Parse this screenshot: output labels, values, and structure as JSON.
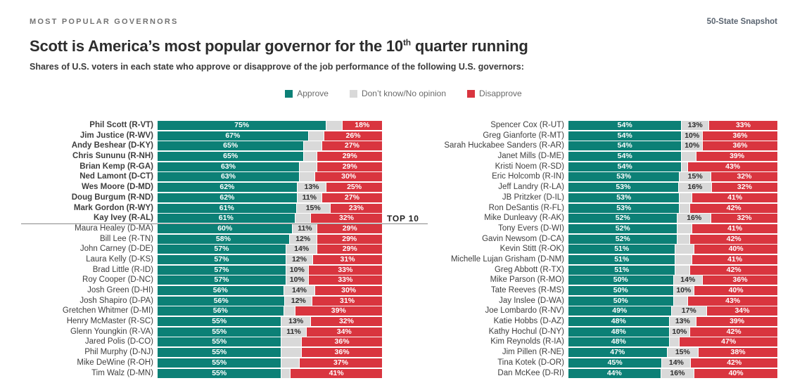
{
  "header": {
    "eyebrow": "MOST POPULAR GOVERNORS",
    "snapshot": "50-State Snapshot",
    "title_prefix": "Scott is America’s most popular governor for the 10",
    "title_sup": "th",
    "title_suffix": " quarter running",
    "subtitle": "Shares of U.S. voters in each state who approve or disapprove of the job performance of the following U.S. governors:"
  },
  "annotations": {
    "top10": "TOP 10"
  },
  "colors": {
    "approve": "#0c8076",
    "neutral": "#d9d9d9",
    "disapprove": "#d9353f"
  },
  "legend": [
    {
      "name": "approve",
      "label": "Approve",
      "color": "#0c8076"
    },
    {
      "name": "neutral",
      "label": "Don’t know/No opinion",
      "color": "#d9d9d9"
    },
    {
      "name": "disapprove",
      "label": "Disapprove",
      "color": "#d9353f"
    }
  ],
  "chart_data": {
    "type": "bar",
    "orientation": "horizontal",
    "stacked": true,
    "unit": "%",
    "series_names": [
      "Approve",
      "Don't know/No opinion",
      "Disapprove"
    ],
    "note": "neutral is null when the segment label is not shown in the chart; segment width is then 100 - approve - disapprove",
    "columns": [
      [
        {
          "name": "Phil Scott (R-VT)",
          "approve": 75,
          "neutral": null,
          "disapprove": 18,
          "bold": true
        },
        {
          "name": "Jim Justice (R-WV)",
          "approve": 67,
          "neutral": null,
          "disapprove": 26,
          "bold": true
        },
        {
          "name": "Andy Beshear (D-KY)",
          "approve": 65,
          "neutral": null,
          "disapprove": 27,
          "bold": true
        },
        {
          "name": "Chris Sununu (R-NH)",
          "approve": 65,
          "neutral": null,
          "disapprove": 29,
          "bold": true
        },
        {
          "name": "Brian Kemp (R-GA)",
          "approve": 63,
          "neutral": null,
          "disapprove": 29,
          "bold": true
        },
        {
          "name": "Ned Lamont (D-CT)",
          "approve": 63,
          "neutral": null,
          "disapprove": 30,
          "bold": true
        },
        {
          "name": "Wes Moore (D-MD)",
          "approve": 62,
          "neutral": 13,
          "disapprove": 25,
          "bold": true
        },
        {
          "name": "Doug Burgum (R-ND)",
          "approve": 62,
          "neutral": 11,
          "disapprove": 27,
          "bold": true
        },
        {
          "name": "Mark Gordon (R-WY)",
          "approve": 61,
          "neutral": 15,
          "disapprove": 23,
          "bold": true
        },
        {
          "name": "Kay Ivey (R-AL)",
          "approve": 61,
          "neutral": null,
          "disapprove": 32,
          "bold": true
        },
        {
          "name": "Maura Healey (D-MA)",
          "approve": 60,
          "neutral": 11,
          "disapprove": 29,
          "bold": false
        },
        {
          "name": "Bill Lee (R-TN)",
          "approve": 58,
          "neutral": 12,
          "disapprove": 29,
          "bold": false
        },
        {
          "name": "John Carney (D-DE)",
          "approve": 57,
          "neutral": 14,
          "disapprove": 29,
          "bold": false
        },
        {
          "name": "Laura Kelly (D-KS)",
          "approve": 57,
          "neutral": 12,
          "disapprove": 31,
          "bold": false
        },
        {
          "name": "Brad Little (R-ID)",
          "approve": 57,
          "neutral": 10,
          "disapprove": 33,
          "bold": false
        },
        {
          "name": "Roy Cooper (D-NC)",
          "approve": 57,
          "neutral": 10,
          "disapprove": 33,
          "bold": false
        },
        {
          "name": "Josh Green (D-HI)",
          "approve": 56,
          "neutral": 14,
          "disapprove": 30,
          "bold": false
        },
        {
          "name": "Josh Shapiro (D-PA)",
          "approve": 56,
          "neutral": 12,
          "disapprove": 31,
          "bold": false
        },
        {
          "name": "Gretchen Whitmer (D-MI)",
          "approve": 56,
          "neutral": null,
          "disapprove": 39,
          "bold": false
        },
        {
          "name": "Henry McMaster (R-SC)",
          "approve": 55,
          "neutral": 13,
          "disapprove": 32,
          "bold": false
        },
        {
          "name": "Glenn Youngkin (R-VA)",
          "approve": 55,
          "neutral": 11,
          "disapprove": 34,
          "bold": false
        },
        {
          "name": "Jared Polis (D-CO)",
          "approve": 55,
          "neutral": null,
          "disapprove": 36,
          "bold": false
        },
        {
          "name": "Phil Murphy (D-NJ)",
          "approve": 55,
          "neutral": null,
          "disapprove": 36,
          "bold": false
        },
        {
          "name": "Mike DeWine (R-OH)",
          "approve": 55,
          "neutral": null,
          "disapprove": 37,
          "bold": false
        },
        {
          "name": "Tim Walz (D-MN)",
          "approve": 55,
          "neutral": null,
          "disapprove": 41,
          "bold": false
        }
      ],
      [
        {
          "name": "Spencer Cox (R-UT)",
          "approve": 54,
          "neutral": 13,
          "disapprove": 33,
          "bold": false
        },
        {
          "name": "Greg Gianforte (R-MT)",
          "approve": 54,
          "neutral": 10,
          "disapprove": 36,
          "bold": false
        },
        {
          "name": "Sarah Huckabee Sanders (R-AR)",
          "approve": 54,
          "neutral": 10,
          "disapprove": 36,
          "bold": false
        },
        {
          "name": "Janet Mills (D-ME)",
          "approve": 54,
          "neutral": null,
          "disapprove": 39,
          "bold": false
        },
        {
          "name": "Kristi Noem (R-SD)",
          "approve": 54,
          "neutral": null,
          "disapprove": 43,
          "bold": false
        },
        {
          "name": "Eric Holcomb (R-IN)",
          "approve": 53,
          "neutral": 15,
          "disapprove": 32,
          "bold": false
        },
        {
          "name": "Jeff Landry (R-LA)",
          "approve": 53,
          "neutral": 16,
          "disapprove": 32,
          "bold": false
        },
        {
          "name": "JB Pritzker (D-IL)",
          "approve": 53,
          "neutral": null,
          "disapprove": 41,
          "bold": false
        },
        {
          "name": "Ron DeSantis (R-FL)",
          "approve": 53,
          "neutral": null,
          "disapprove": 42,
          "bold": false
        },
        {
          "name": "Mike Dunleavy (R-AK)",
          "approve": 52,
          "neutral": 16,
          "disapprove": 32,
          "bold": false
        },
        {
          "name": "Tony Evers (D-WI)",
          "approve": 52,
          "neutral": null,
          "disapprove": 41,
          "bold": false
        },
        {
          "name": "Gavin Newsom (D-CA)",
          "approve": 52,
          "neutral": null,
          "disapprove": 42,
          "bold": false
        },
        {
          "name": "Kevin Stitt (R-OK)",
          "approve": 51,
          "neutral": null,
          "disapprove": 40,
          "bold": false
        },
        {
          "name": "Michelle Lujan Grisham (D-NM)",
          "approve": 51,
          "neutral": null,
          "disapprove": 41,
          "bold": false
        },
        {
          "name": "Greg Abbott (R-TX)",
          "approve": 51,
          "neutral": null,
          "disapprove": 42,
          "bold": false
        },
        {
          "name": "Mike Parson (R-MO)",
          "approve": 50,
          "neutral": 14,
          "disapprove": 36,
          "bold": false
        },
        {
          "name": "Tate Reeves (R-MS)",
          "approve": 50,
          "neutral": 10,
          "disapprove": 40,
          "bold": false
        },
        {
          "name": "Jay Inslee (D-WA)",
          "approve": 50,
          "neutral": null,
          "disapprove": 43,
          "bold": false
        },
        {
          "name": "Joe Lombardo (R-NV)",
          "approve": 49,
          "neutral": 17,
          "disapprove": 34,
          "bold": false
        },
        {
          "name": "Katie Hobbs (D-AZ)",
          "approve": 48,
          "neutral": 13,
          "disapprove": 39,
          "bold": false
        },
        {
          "name": "Kathy Hochul (D-NY)",
          "approve": 48,
          "neutral": 10,
          "disapprove": 42,
          "bold": false
        },
        {
          "name": "Kim Reynolds (R-IA)",
          "approve": 48,
          "neutral": null,
          "disapprove": 47,
          "bold": false
        },
        {
          "name": "Jim Pillen (R-NE)",
          "approve": 47,
          "neutral": 15,
          "disapprove": 38,
          "bold": false
        },
        {
          "name": "Tina Kotek (D-OR)",
          "approve": 45,
          "neutral": 14,
          "disapprove": 42,
          "bold": false
        },
        {
          "name": "Dan McKee (D-RI)",
          "approve": 44,
          "neutral": 16,
          "disapprove": 40,
          "bold": false
        }
      ]
    ]
  }
}
